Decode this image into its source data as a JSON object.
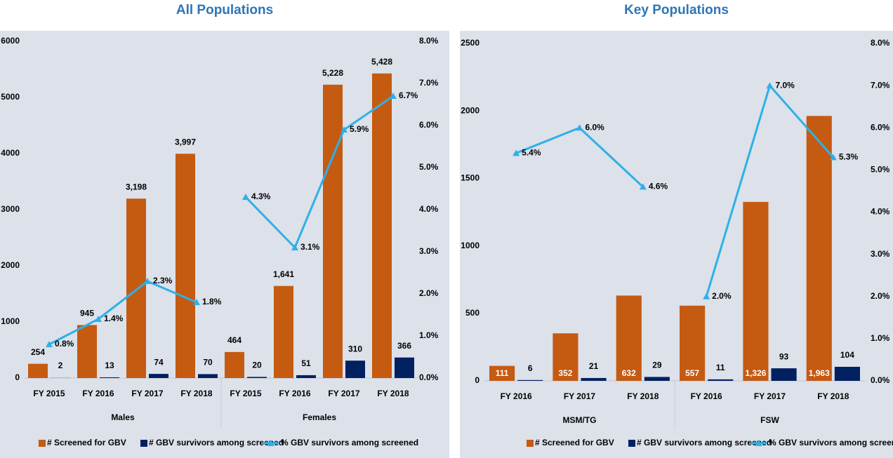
{
  "chart_data": [
    {
      "type": "bar",
      "title": "All Populations",
      "categories": [
        "FY 2015",
        "FY 2016",
        "FY 2017",
        "FY 2018",
        "FY 2015",
        "FY 2016",
        "FY 2017",
        "FY 2018"
      ],
      "groups": [
        "Males",
        "Females"
      ],
      "series": [
        {
          "name": "# Screened for GBV",
          "color": "#C55A11",
          "values": [
            254,
            945,
            3198,
            3997,
            464,
            1641,
            5228,
            5428
          ],
          "value_labels": [
            "254",
            "945",
            "3,198",
            "3,997",
            "464",
            "1,641",
            "5,228",
            "5,428"
          ]
        },
        {
          "name": "# GBV survivors among screened",
          "color": "#002060",
          "values": [
            2,
            13,
            74,
            70,
            20,
            51,
            310,
            366
          ]
        },
        {
          "name": "% GBV survivors among screened",
          "type": "line",
          "axis": "y2",
          "color": "#2EB0E8",
          "values": [
            0.8,
            1.4,
            2.3,
            1.8,
            4.3,
            3.1,
            5.9,
            6.7
          ],
          "value_labels": [
            "0.8%",
            "1.4%",
            "2.3%",
            "1.8%",
            "4.3%",
            "3.1%",
            "5.9%",
            "6.7%"
          ]
        }
      ],
      "ylim": [
        0,
        6000
      ],
      "yticks": [
        0,
        1000,
        2000,
        3000,
        4000,
        5000,
        6000
      ],
      "y2lim": [
        0,
        8
      ],
      "y2ticks": [
        {
          "value": 0,
          "label": "0.0%"
        },
        {
          "value": 1,
          "label": "1.0%"
        },
        {
          "value": 2,
          "label": "2.0%"
        },
        {
          "value": 3,
          "label": "3.0%"
        },
        {
          "value": 4,
          "label": "4.0%"
        },
        {
          "value": 5,
          "label": "5.0%"
        },
        {
          "value": 6,
          "label": "6.0%"
        },
        {
          "value": 7,
          "label": "7.0%"
        },
        {
          "value": 8,
          "label": "8.0%"
        }
      ]
    },
    {
      "type": "bar",
      "title": "Key Populations",
      "categories": [
        "FY 2016",
        "FY 2017",
        "FY 2018",
        "FY 2016",
        "FY 2017",
        "FY 2018"
      ],
      "groups": [
        "MSM/TG",
        "FSW"
      ],
      "series": [
        {
          "name": "# Screened for GBV",
          "color": "#C55A11",
          "values": [
            111,
            352,
            632,
            557,
            1326,
            1963
          ],
          "value_labels": [
            "111",
            "352",
            "632",
            "557",
            "1,326",
            "1,963"
          ]
        },
        {
          "name": "# GBV survivors among screened",
          "color": "#002060",
          "values": [
            6,
            21,
            29,
            11,
            93,
            104
          ]
        },
        {
          "name": "% GBV survivors among screened",
          "type": "line",
          "axis": "y2",
          "color": "#2EB0E8",
          "values": [
            5.4,
            6.0,
            4.6,
            2.0,
            7.0,
            5.3
          ],
          "value_labels": [
            "5.4%",
            "6.0%",
            "4.6%",
            "2.0%",
            "7.0%",
            "5.3%"
          ]
        }
      ],
      "ylim": [
        0,
        2500
      ],
      "yticks": [
        0,
        500,
        1000,
        1500,
        2000,
        2500
      ],
      "y2lim": [
        0,
        8
      ],
      "y2ticks": [
        {
          "value": 0,
          "label": "0.0%"
        },
        {
          "value": 1,
          "label": "1.0%"
        },
        {
          "value": 2,
          "label": "2.0%"
        },
        {
          "value": 3,
          "label": "3.0%"
        },
        {
          "value": 4,
          "label": "4.0%"
        },
        {
          "value": 5,
          "label": "5.0%"
        },
        {
          "value": 6,
          "label": "6.0%"
        },
        {
          "value": 7,
          "label": "7.0%"
        },
        {
          "value": 8,
          "label": "8.0%"
        }
      ]
    }
  ]
}
